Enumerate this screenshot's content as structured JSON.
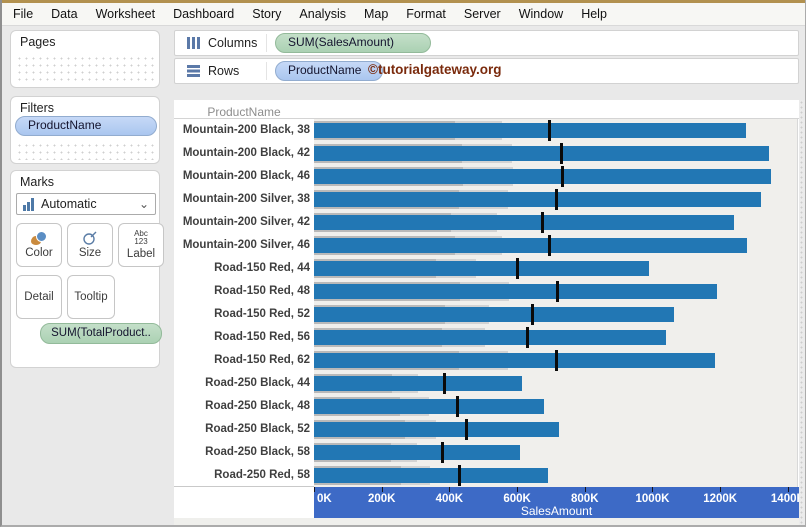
{
  "menu": {
    "items": [
      "File",
      "Data",
      "Worksheet",
      "Dashboard",
      "Story",
      "Analysis",
      "Map",
      "Format",
      "Server",
      "Window",
      "Help"
    ]
  },
  "sidebar": {
    "pages": {
      "title": "Pages"
    },
    "filters": {
      "title": "Filters",
      "pill": "ProductName"
    },
    "marks": {
      "title": "Marks",
      "mark_type": "Automatic",
      "buttons": {
        "color": "Color",
        "size": "Size",
        "label": "Label",
        "detail": "Detail",
        "tooltip": "Tooltip"
      },
      "label_icon": {
        "line1": "Abc",
        "line2": "123"
      },
      "pill": "SUM(TotalProduct.."
    }
  },
  "shelves": {
    "columns": {
      "label": "Columns",
      "pill": "SUM(SalesAmount)"
    },
    "rows": {
      "label": "Rows",
      "pill": "ProductName"
    }
  },
  "watermark": "©tutorialgateway.org",
  "chart_data": {
    "type": "bar",
    "orientation": "horizontal",
    "title": "",
    "row_header": "ProductName",
    "xlabel": "SalesAmount",
    "categories": [
      "Mountain-200 Black, 38",
      "Mountain-200 Black, 42",
      "Mountain-200 Black, 46",
      "Mountain-200 Silver, 38",
      "Mountain-200 Silver, 42",
      "Mountain-200 Silver, 46",
      "Road-150 Red, 44",
      "Road-150 Red, 48",
      "Road-150 Red, 52",
      "Road-150 Red, 56",
      "Road-150 Red, 62",
      "Road-250 Black, 44",
      "Road-250 Black, 48",
      "Road-250 Black, 52",
      "Road-250 Black, 58",
      "Road-250 Red, 58"
    ],
    "series": [
      {
        "name": "SUM(SalesAmount)",
        "role": "bar",
        "unit": "K",
        "values": [
          1275,
          1345,
          1350,
          1320,
          1240,
          1280,
          990,
          1190,
          1065,
          1040,
          1185,
          615,
          680,
          725,
          610,
          690
        ]
      },
      {
        "name": "SUM(TotalProductCost)",
        "role": "reference-line",
        "unit": "K",
        "values": [
          695,
          730,
          735,
          715,
          675,
          695,
          600,
          720,
          645,
          630,
          715,
          385,
          425,
          450,
          380,
          430
        ]
      }
    ],
    "distribution_bands_pct_of_reference": [
      60,
      80
    ],
    "ticks": [
      "0K",
      "200K",
      "400K",
      "600K",
      "800K",
      "1000K",
      "1200K",
      "1400K"
    ],
    "tick_values": [
      0,
      200,
      400,
      600,
      800,
      1000,
      1200,
      1400
    ],
    "xlim": [
      0,
      1430
    ],
    "grid": false,
    "legend": "none",
    "colors": {
      "bar": "#2277b4",
      "band60": "#b9b9b9",
      "band80": "#d3d3d3",
      "reference": "#0a0a0a",
      "axis_highlight": "#3d6ac6",
      "plot_bg": "#f0efec"
    }
  }
}
